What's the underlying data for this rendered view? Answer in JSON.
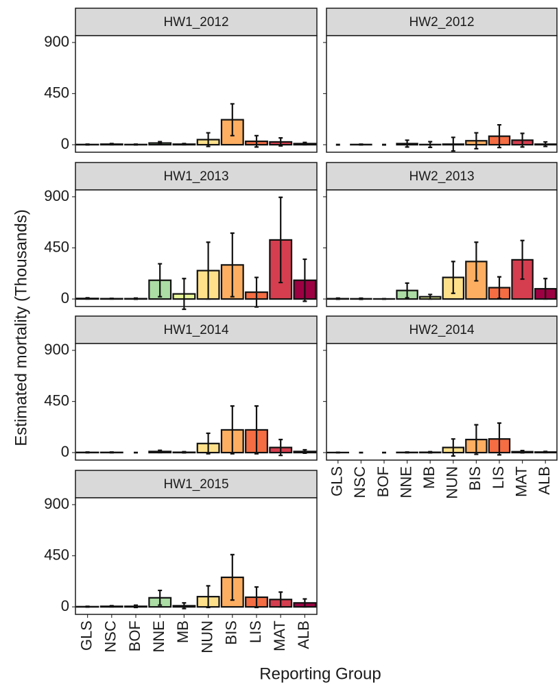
{
  "chart_data": {
    "type": "bar",
    "x_label": "Reporting Group",
    "y_label": "Estimated mortality (Thousands)",
    "categories": [
      "GLS",
      "NSC",
      "BOF",
      "NNE",
      "MB",
      "NUN",
      "BIS",
      "LIS",
      "MAT",
      "ALB"
    ],
    "colors": [
      "#5e4fa2",
      "#3288bd",
      "#66c2a5",
      "#abdda4",
      "#e6f598",
      "#fee08b",
      "#fdae61",
      "#f46d43",
      "#d53e4f",
      "#9e0142"
    ],
    "ylim": [
      -66,
      960
    ],
    "yticks": [
      0,
      450,
      900
    ],
    "panels": [
      {
        "title": "HW1_2012",
        "values": [
          2,
          5,
          2,
          15,
          5,
          45,
          220,
          30,
          25,
          10
        ],
        "errors": [
          3,
          5,
          3,
          12,
          5,
          60,
          140,
          50,
          35,
          10
        ]
      },
      {
        "title": "HW2_2012",
        "values": [
          0,
          2,
          0,
          10,
          2,
          5,
          35,
          75,
          40,
          5
        ],
        "errors": [
          2,
          3,
          2,
          30,
          25,
          60,
          70,
          100,
          60,
          20
        ]
      },
      {
        "title": "HW1_2013",
        "values": [
          5,
          3,
          3,
          165,
          45,
          250,
          300,
          60,
          520,
          165
        ],
        "errors": [
          5,
          3,
          5,
          145,
          135,
          250,
          280,
          130,
          375,
          185
        ]
      },
      {
        "title": "HW2_2013",
        "values": [
          3,
          2,
          1,
          75,
          20,
          190,
          330,
          100,
          345,
          90
        ],
        "errors": [
          5,
          5,
          2,
          65,
          20,
          140,
          170,
          95,
          170,
          90
        ]
      },
      {
        "title": "HW1_2014",
        "values": [
          2,
          2,
          0,
          10,
          3,
          80,
          200,
          200,
          45,
          10
        ],
        "errors": [
          3,
          3,
          1,
          10,
          5,
          90,
          210,
          210,
          70,
          15
        ]
      },
      {
        "title": "HW2_2014",
        "values": [
          1,
          0,
          0,
          2,
          3,
          45,
          115,
          120,
          8,
          5
        ],
        "errors": [
          2,
          1,
          1,
          3,
          5,
          75,
          130,
          140,
          10,
          5
        ]
      },
      {
        "title": "HW1_2015",
        "values": [
          2,
          5,
          5,
          80,
          10,
          90,
          260,
          85,
          65,
          35
        ],
        "errors": [
          3,
          5,
          10,
          65,
          25,
          95,
          200,
          90,
          65,
          35
        ]
      }
    ]
  }
}
